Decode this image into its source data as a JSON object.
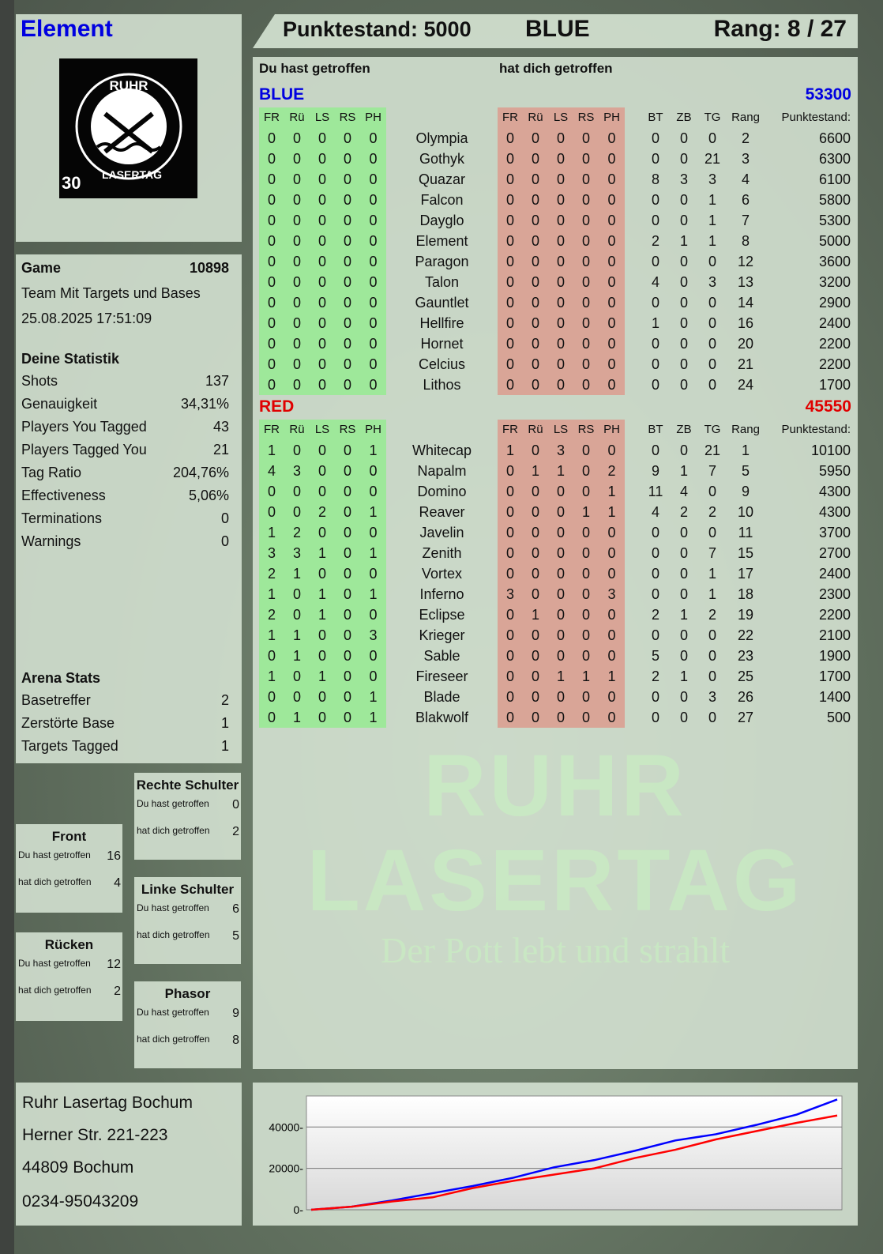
{
  "player": {
    "name": "Element"
  },
  "logo": {
    "text_top": "RUHR",
    "text_bottom": "LASERTAG",
    "badge": "30"
  },
  "header": {
    "score": "Punktestand: 5000",
    "team": "BLUE",
    "rank": "Rang: 8 / 27"
  },
  "main": {
    "you_hit": "Du hast getroffen",
    "hit_you": "hat dich getroffen",
    "columns": [
      "FR",
      "Rü",
      "LS",
      "RS",
      "PH",
      "",
      "FR",
      "Rü",
      "LS",
      "RS",
      "PH",
      "",
      "BT",
      "ZB",
      "TG",
      "Rang",
      "Punktestand:"
    ],
    "teams": [
      {
        "name": "BLUE",
        "score": "53300",
        "color": "#0000e0",
        "players": [
          [
            "0",
            "0",
            "0",
            "0",
            "0",
            "Olympia",
            "0",
            "0",
            "0",
            "0",
            "0",
            "0",
            "0",
            "0",
            "2",
            "6600"
          ],
          [
            "0",
            "0",
            "0",
            "0",
            "0",
            "Gothyk",
            "0",
            "0",
            "0",
            "0",
            "0",
            "0",
            "0",
            "21",
            "3",
            "6300"
          ],
          [
            "0",
            "0",
            "0",
            "0",
            "0",
            "Quazar",
            "0",
            "0",
            "0",
            "0",
            "0",
            "8",
            "3",
            "3",
            "4",
            "6100"
          ],
          [
            "0",
            "0",
            "0",
            "0",
            "0",
            "Falcon",
            "0",
            "0",
            "0",
            "0",
            "0",
            "0",
            "0",
            "1",
            "6",
            "5800"
          ],
          [
            "0",
            "0",
            "0",
            "0",
            "0",
            "Dayglo",
            "0",
            "0",
            "0",
            "0",
            "0",
            "0",
            "0",
            "1",
            "7",
            "5300"
          ],
          [
            "0",
            "0",
            "0",
            "0",
            "0",
            "Element",
            "0",
            "0",
            "0",
            "0",
            "0",
            "2",
            "1",
            "1",
            "8",
            "5000"
          ],
          [
            "0",
            "0",
            "0",
            "0",
            "0",
            "Paragon",
            "0",
            "0",
            "0",
            "0",
            "0",
            "0",
            "0",
            "0",
            "12",
            "3600"
          ],
          [
            "0",
            "0",
            "0",
            "0",
            "0",
            "Talon",
            "0",
            "0",
            "0",
            "0",
            "0",
            "4",
            "0",
            "3",
            "13",
            "3200"
          ],
          [
            "0",
            "0",
            "0",
            "0",
            "0",
            "Gauntlet",
            "0",
            "0",
            "0",
            "0",
            "0",
            "0",
            "0",
            "0",
            "14",
            "2900"
          ],
          [
            "0",
            "0",
            "0",
            "0",
            "0",
            "Hellfire",
            "0",
            "0",
            "0",
            "0",
            "0",
            "1",
            "0",
            "0",
            "16",
            "2400"
          ],
          [
            "0",
            "0",
            "0",
            "0",
            "0",
            "Hornet",
            "0",
            "0",
            "0",
            "0",
            "0",
            "0",
            "0",
            "0",
            "20",
            "2200"
          ],
          [
            "0",
            "0",
            "0",
            "0",
            "0",
            "Celcius",
            "0",
            "0",
            "0",
            "0",
            "0",
            "0",
            "0",
            "0",
            "21",
            "2200"
          ],
          [
            "0",
            "0",
            "0",
            "0",
            "0",
            "Lithos",
            "0",
            "0",
            "0",
            "0",
            "0",
            "0",
            "0",
            "0",
            "24",
            "1700"
          ]
        ]
      },
      {
        "name": "RED",
        "score": "45550",
        "color": "#e00000",
        "players": [
          [
            "1",
            "0",
            "0",
            "0",
            "1",
            "Whitecap",
            "1",
            "0",
            "3",
            "0",
            "0",
            "0",
            "0",
            "21",
            "1",
            "10100"
          ],
          [
            "4",
            "3",
            "0",
            "0",
            "0",
            "Napalm",
            "0",
            "1",
            "1",
            "0",
            "2",
            "9",
            "1",
            "7",
            "5",
            "5950"
          ],
          [
            "0",
            "0",
            "0",
            "0",
            "0",
            "Domino",
            "0",
            "0",
            "0",
            "0",
            "1",
            "11",
            "4",
            "0",
            "9",
            "4300"
          ],
          [
            "0",
            "0",
            "2",
            "0",
            "1",
            "Reaver",
            "0",
            "0",
            "0",
            "1",
            "1",
            "4",
            "2",
            "2",
            "10",
            "4300"
          ],
          [
            "1",
            "2",
            "0",
            "0",
            "0",
            "Javelin",
            "0",
            "0",
            "0",
            "0",
            "0",
            "0",
            "0",
            "0",
            "11",
            "3700"
          ],
          [
            "3",
            "3",
            "1",
            "0",
            "1",
            "Zenith",
            "0",
            "0",
            "0",
            "0",
            "0",
            "0",
            "0",
            "7",
            "15",
            "2700"
          ],
          [
            "2",
            "1",
            "0",
            "0",
            "0",
            "Vortex",
            "0",
            "0",
            "0",
            "0",
            "0",
            "0",
            "0",
            "1",
            "17",
            "2400"
          ],
          [
            "1",
            "0",
            "1",
            "0",
            "1",
            "Inferno",
            "3",
            "0",
            "0",
            "0",
            "3",
            "0",
            "0",
            "1",
            "18",
            "2300"
          ],
          [
            "2",
            "0",
            "1",
            "0",
            "0",
            "Eclipse",
            "0",
            "1",
            "0",
            "0",
            "0",
            "2",
            "1",
            "2",
            "19",
            "2200"
          ],
          [
            "1",
            "1",
            "0",
            "0",
            "3",
            "Krieger",
            "0",
            "0",
            "0",
            "0",
            "0",
            "0",
            "0",
            "0",
            "22",
            "2100"
          ],
          [
            "0",
            "1",
            "0",
            "0",
            "0",
            "Sable",
            "0",
            "0",
            "0",
            "0",
            "0",
            "5",
            "0",
            "0",
            "23",
            "1900"
          ],
          [
            "1",
            "0",
            "1",
            "0",
            "0",
            "Fireseer",
            "0",
            "0",
            "1",
            "1",
            "1",
            "2",
            "1",
            "0",
            "25",
            "1700"
          ],
          [
            "0",
            "0",
            "0",
            "0",
            "1",
            "Blade",
            "0",
            "0",
            "0",
            "0",
            "0",
            "0",
            "0",
            "3",
            "26",
            "1400"
          ],
          [
            "0",
            "1",
            "0",
            "0",
            "1",
            "Blakwolf",
            "0",
            "0",
            "0",
            "0",
            "0",
            "0",
            "0",
            "0",
            "27",
            "500"
          ]
        ]
      }
    ]
  },
  "game": {
    "label": "Game",
    "number": "10898",
    "mode": "Team Mit Targets und Bases",
    "datetime": "25.08.2025 17:51:09"
  },
  "stats": {
    "title": "Deine Statistik",
    "items": [
      [
        "Shots",
        "137"
      ],
      [
        "Genauigkeit",
        "34,31%"
      ],
      [
        "Players You Tagged",
        "43"
      ],
      [
        "Players Tagged You",
        "21"
      ],
      [
        "Tag Ratio",
        "204,76%"
      ],
      [
        "Effectiveness",
        "5,06%"
      ],
      [
        "Terminations",
        "0"
      ],
      [
        "Warnings",
        "0"
      ]
    ]
  },
  "arena": {
    "title": "Arena Stats",
    "items": [
      [
        "Basetreffer",
        "2"
      ],
      [
        "Zerstörte Base",
        "1"
      ],
      [
        "Targets Tagged",
        "1"
      ]
    ]
  },
  "zones": [
    {
      "title": "Rechte Schulter",
      "you_hit": "Du hast getroffen",
      "you_hit_value": "0",
      "hit_you": "hat dich getroffen",
      "hit_you_value": "2"
    },
    {
      "title": "Front",
      "you_hit": "Du hast getroffen",
      "you_hit_value": "16",
      "hit_you": "hat dich getroffen",
      "hit_you_value": "4"
    },
    {
      "title": "Linke Schulter",
      "you_hit": "Du hast getroffen",
      "you_hit_value": "6",
      "hit_you": "hat dich getroffen",
      "hit_you_value": "5"
    },
    {
      "title": "Rücken",
      "you_hit": "Du hast getroffen",
      "you_hit_value": "12",
      "hit_you": "hat dich getroffen",
      "hit_you_value": "2"
    },
    {
      "title": "Phasor",
      "you_hit": "Du hast getroffen",
      "you_hit_value": "9",
      "hit_you": "hat dich getroffen",
      "hit_you_value": "8"
    }
  ],
  "address": [
    "Ruhr Lasertag Bochum",
    "Herner Str. 221-223",
    "44809 Bochum",
    "0234-95043209"
  ],
  "watermark": {
    "line1": "RUHR",
    "line2": "LASERTAG",
    "line3": "Der Pott lebt und strahlt"
  },
  "chart_data": {
    "type": "line",
    "ylim": [
      0,
      55000
    ],
    "yticks": [
      0,
      20000,
      40000
    ],
    "ytick_labels": [
      "0",
      "20000",
      "40000"
    ],
    "grid": true,
    "x": [
      0,
      1,
      2,
      3,
      4,
      5,
      6,
      7,
      8,
      9,
      10,
      11,
      12,
      13
    ],
    "series": [
      {
        "color": "#0000ff",
        "values": [
          0,
          1500,
          4500,
          8000,
          11500,
          15500,
          20500,
          24000,
          28500,
          33500,
          36500,
          41000,
          46000,
          53300
        ]
      },
      {
        "color": "#ff0000",
        "values": [
          0,
          1500,
          4000,
          6000,
          10500,
          14000,
          17000,
          20000,
          25000,
          29000,
          34000,
          38000,
          42000,
          45550
        ]
      }
    ]
  }
}
